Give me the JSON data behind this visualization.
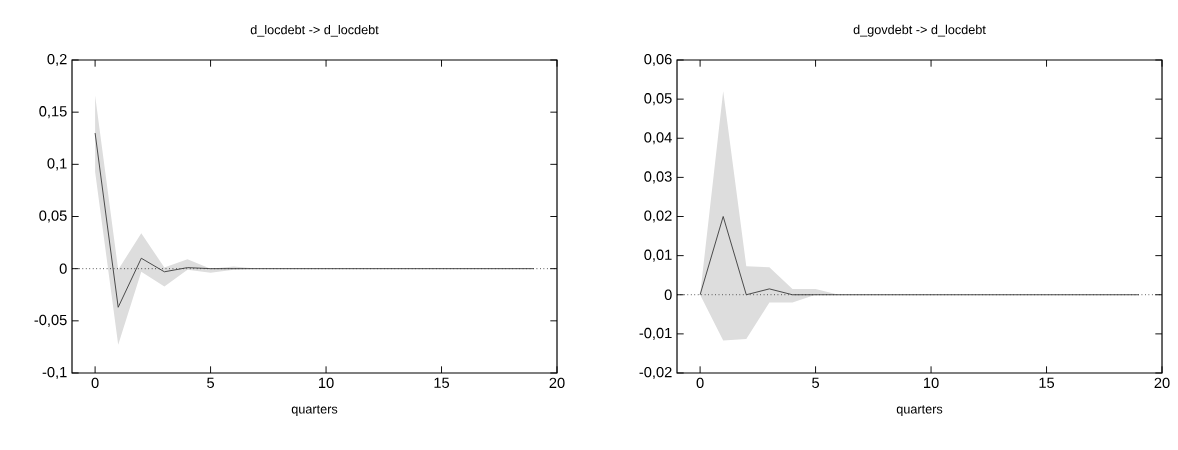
{
  "chart_data": [
    {
      "type": "line",
      "title": "d_locdebt -> d_locdebt",
      "xlabel": "quarters",
      "marker": "none",
      "line_style": "solid",
      "grid": false,
      "xlim": [
        -1,
        20
      ],
      "xticks": [
        0,
        5,
        10,
        15,
        20
      ],
      "ylim": [
        -0.1,
        0.2
      ],
      "yticks": [
        {
          "value": -0.1,
          "label": "-0,1"
        },
        {
          "value": -0.05,
          "label": "-0,05"
        },
        0,
        {
          "value": 0.05,
          "label": "0,05"
        },
        {
          "value": 0.1,
          "label": "0,1"
        },
        {
          "value": 0.15,
          "label": "0,15"
        },
        {
          "value": 0.2,
          "label": "0,2"
        }
      ],
      "ref_lines": [
        {
          "axis": "y",
          "value": 0,
          "color": "#000000",
          "line_style": "dotted"
        }
      ],
      "series": [
        {
          "color": "#404040",
          "x": [
            0,
            1,
            2,
            3,
            4,
            5,
            6,
            7,
            8,
            9,
            10,
            11,
            12,
            13,
            14,
            15,
            16,
            17,
            18,
            19
          ],
          "values": [
            0.13,
            -0.037,
            0.01,
            -0.003,
            0.001,
            0,
            0,
            0,
            0,
            0,
            0,
            0,
            0,
            0,
            0,
            0,
            0,
            0,
            0,
            0
          ],
          "upper": [
            0.166,
            -0.001,
            0.034,
            0.001,
            0.009,
            0,
            0.002,
            0,
            0,
            0,
            0,
            0,
            0,
            0,
            0,
            0,
            0,
            0,
            0,
            0
          ],
          "lower": [
            0.093,
            -0.073,
            -0.003,
            -0.017,
            -0.001,
            -0.004,
            -0.001,
            0,
            0,
            0,
            0,
            0,
            0,
            0,
            0,
            0,
            0,
            0,
            0,
            0
          ]
        }
      ]
    },
    {
      "type": "line",
      "title": "d_govdebt -> d_locdebt",
      "xlabel": "quarters",
      "marker": "none",
      "line_style": "solid",
      "grid": false,
      "xlim": [
        -1,
        20
      ],
      "xticks": [
        0,
        5,
        10,
        15,
        20
      ],
      "ylim": [
        -0.02,
        0.06
      ],
      "yticks": [
        {
          "value": -0.02,
          "label": "-0,02"
        },
        {
          "value": -0.01,
          "label": "-0,01"
        },
        0,
        {
          "value": 0.01,
          "label": "0,01"
        },
        {
          "value": 0.02,
          "label": "0,02"
        },
        {
          "value": 0.03,
          "label": "0,03"
        },
        {
          "value": 0.04,
          "label": "0,04"
        },
        {
          "value": 0.05,
          "label": "0,05"
        },
        {
          "value": 0.06,
          "label": "0,06"
        }
      ],
      "ref_lines": [
        {
          "axis": "y",
          "value": 0,
          "color": "#000000",
          "line_style": "dotted"
        }
      ],
      "series": [
        {
          "color": "#404040",
          "x": [
            0,
            1,
            2,
            3,
            4,
            5,
            6,
            7,
            8,
            9,
            10,
            11,
            12,
            13,
            14,
            15,
            16,
            17,
            18,
            19
          ],
          "values": [
            0,
            0.02,
            0,
            0.0015,
            0,
            0,
            0,
            0,
            0,
            0,
            0,
            0,
            0,
            0,
            0,
            0,
            0,
            0,
            0,
            0
          ],
          "upper": [
            0,
            0.052,
            0.0073,
            0.007,
            0.0015,
            0.0015,
            0,
            0,
            0,
            0,
            0,
            0,
            0,
            0,
            0,
            0,
            0,
            0,
            0,
            0
          ],
          "lower": [
            0,
            -0.0117,
            -0.0113,
            -0.002,
            -0.002,
            0,
            0,
            0,
            0,
            0,
            0,
            0,
            0,
            0,
            0,
            0,
            0,
            0,
            0,
            0
          ]
        }
      ]
    }
  ]
}
